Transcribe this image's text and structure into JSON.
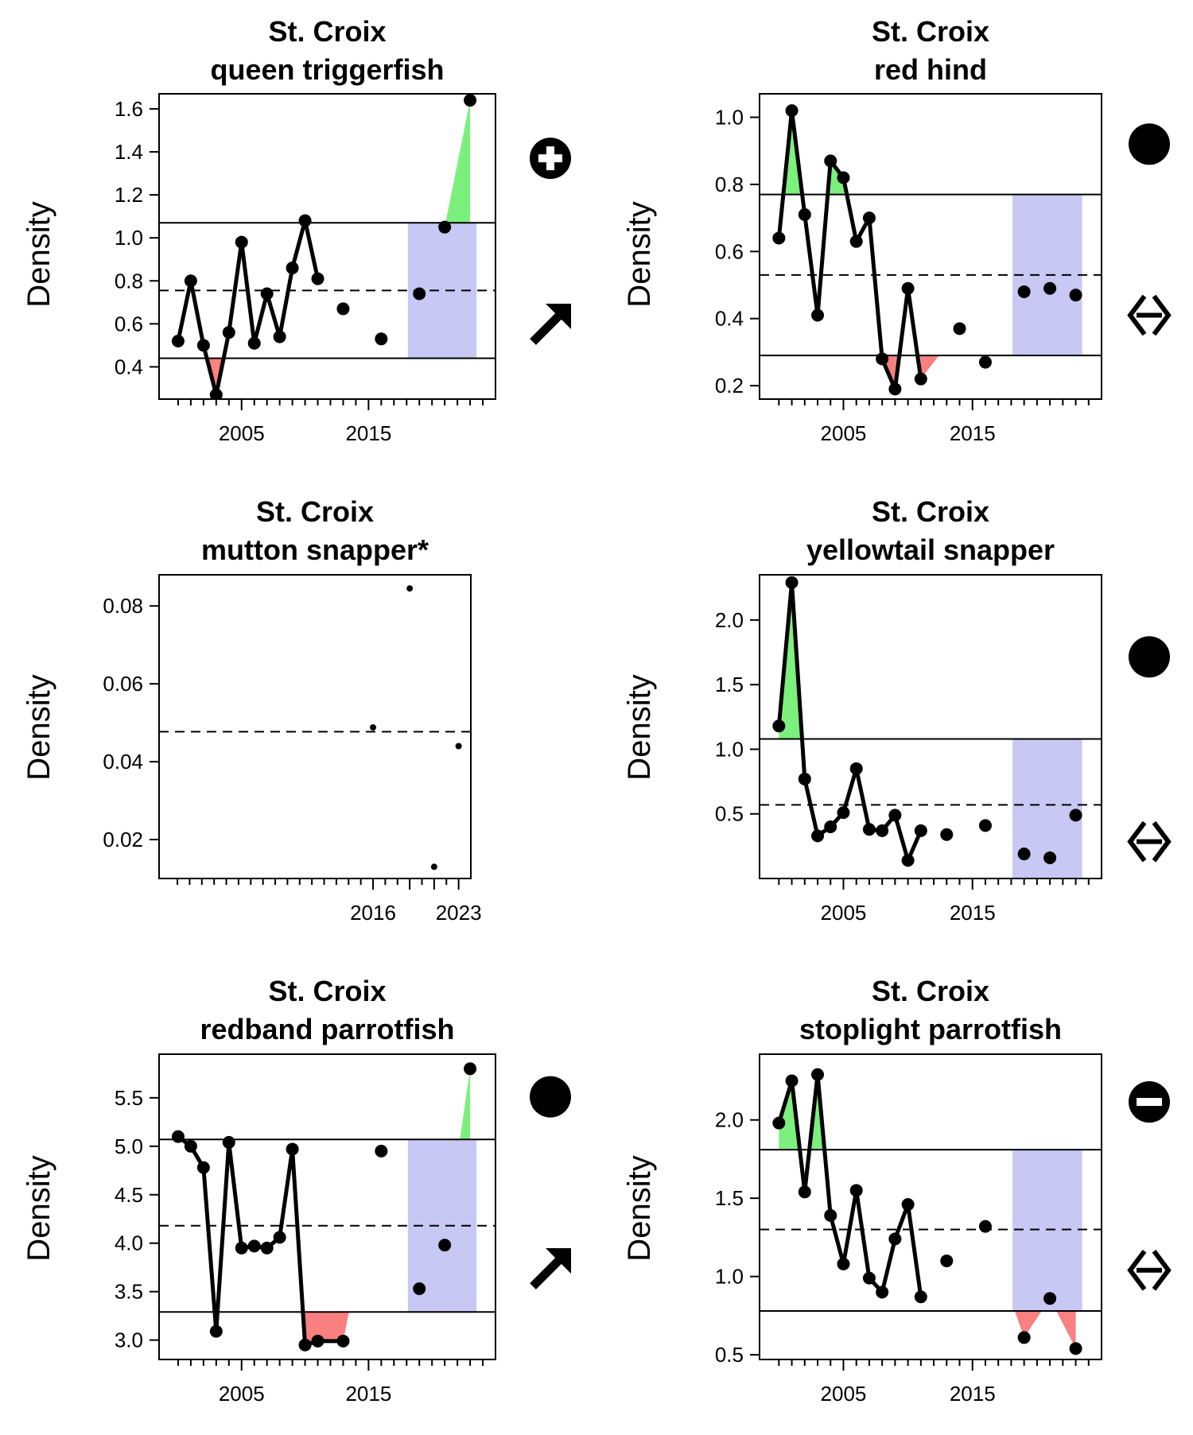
{
  "chart_data": [
    {
      "type": "line",
      "title": "St. Croix",
      "subtitle": "queen triggerfish",
      "ylabel": "Density",
      "xlim": [
        1998.5,
        2025
      ],
      "ylim": [
        0.25,
        1.67
      ],
      "yticks": [
        "0.4",
        "0.6",
        "0.8",
        "1.0",
        "1.2",
        "1.4",
        "1.6"
      ],
      "xticks": [
        "2005",
        "2015"
      ],
      "x": [
        2000,
        2001,
        2002,
        2003,
        2004,
        2005,
        2006,
        2007,
        2008,
        2009,
        2010,
        2011,
        2013,
        2016,
        2019,
        2021,
        2023
      ],
      "y": [
        0.52,
        0.8,
        0.5,
        0.27,
        0.56,
        0.98,
        0.51,
        0.74,
        0.54,
        0.86,
        1.08,
        0.81,
        0.67,
        0.53,
        0.74,
        1.05,
        1.64
      ],
      "upper": 1.07,
      "mean": 0.755,
      "lower": 0.44,
      "window": [
        2019,
        2023
      ],
      "status_symbol": "plus-circle-icon",
      "trend_symbol": "arrow-up-right-icon",
      "colors": {
        "above": "#7cf07c",
        "below": "#f88080",
        "window": "#c8c8f5"
      }
    },
    {
      "type": "line",
      "title": "St. Croix",
      "subtitle": "red hind",
      "ylabel": "Density",
      "xlim": [
        1998.5,
        2025
      ],
      "ylim": [
        0.16,
        1.07
      ],
      "yticks": [
        "0.2",
        "0.4",
        "0.6",
        "0.8",
        "1.0"
      ],
      "xticks": [
        "2005",
        "2015"
      ],
      "x": [
        2000,
        2001,
        2002,
        2003,
        2004,
        2005,
        2006,
        2007,
        2008,
        2009,
        2010,
        2011,
        2012,
        2014,
        2016,
        2019,
        2021,
        2023
      ],
      "y": [
        0.64,
        1.02,
        0.71,
        0.41,
        0.87,
        0.82,
        0.63,
        0.7,
        0.28,
        0.19,
        0.49,
        0.22,
        null,
        0.37,
        0.27,
        0.48,
        0.49,
        0.47
      ],
      "upper": 0.77,
      "mean": 0.53,
      "lower": 0.29,
      "window": [
        2019,
        2023
      ],
      "status_symbol": "filled-circle-icon",
      "trend_symbol": "arrow-left-right-icon",
      "colors": {
        "above": "#7cf07c",
        "below": "#f88080",
        "window": "#c8c8f5"
      }
    },
    {
      "type": "scatter",
      "title": "St. Croix",
      "subtitle": "mutton snapper*",
      "ylabel": "Density",
      "xlim": [
        1998.5,
        2024
      ],
      "ylim": [
        0.01,
        0.088
      ],
      "yticks": [
        "0.02",
        "0.04",
        "0.06",
        "0.08"
      ],
      "xticks": [
        "2016",
        "2023"
      ],
      "x": [
        2016,
        2019,
        2021,
        2023
      ],
      "y": [
        0.0488,
        0.0845,
        0.013,
        0.044
      ],
      "mean": 0.0477
    },
    {
      "type": "line",
      "title": "St. Croix",
      "subtitle": "yellowtail snapper",
      "ylabel": "Density",
      "xlim": [
        1998.5,
        2025
      ],
      "ylim": [
        0.0,
        2.35
      ],
      "yticks": [
        "0.5",
        "1.0",
        "1.5",
        "2.0"
      ],
      "xticks": [
        "2005",
        "2015"
      ],
      "x": [
        2000,
        2001,
        2002,
        2003,
        2004,
        2005,
        2006,
        2007,
        2008,
        2009,
        2010,
        2011,
        2013,
        2016,
        2019,
        2021,
        2023
      ],
      "y": [
        1.18,
        2.29,
        0.77,
        0.33,
        0.4,
        0.51,
        0.85,
        0.38,
        0.37,
        0.49,
        0.14,
        0.37,
        0.34,
        0.41,
        0.19,
        0.16,
        0.49
      ],
      "upper": 1.08,
      "mean": 0.57,
      "lower": 0.0,
      "window": [
        2019,
        2023
      ],
      "status_symbol": "filled-circle-icon",
      "trend_symbol": "arrow-left-right-icon",
      "colors": {
        "above": "#7cf07c",
        "below": "#f88080",
        "window": "#c8c8f5"
      }
    },
    {
      "type": "line",
      "title": "St. Croix",
      "subtitle": "redband parrotfish",
      "ylabel": "Density",
      "xlim": [
        1998.5,
        2025
      ],
      "ylim": [
        2.8,
        5.95
      ],
      "yticks": [
        "3.0",
        "3.5",
        "4.0",
        "4.5",
        "5.0",
        "5.5"
      ],
      "xticks": [
        "2005",
        "2015"
      ],
      "x": [
        2000,
        2001,
        2002,
        2003,
        2004,
        2005,
        2006,
        2007,
        2008,
        2009,
        2010,
        2011,
        2013,
        2016,
        2019,
        2021,
        2023
      ],
      "y": [
        5.1,
        5.0,
        4.78,
        3.09,
        5.04,
        3.95,
        3.97,
        3.95,
        4.06,
        4.97,
        2.95,
        2.99,
        2.99,
        4.95,
        3.53,
        3.98,
        5.8
      ],
      "upper": 5.07,
      "mean": 4.18,
      "lower": 3.29,
      "window": [
        2019,
        2023
      ],
      "status_symbol": "filled-circle-icon",
      "trend_symbol": "arrow-up-right-icon",
      "colors": {
        "above": "#7cf07c",
        "below": "#f88080",
        "window": "#c8c8f5"
      }
    },
    {
      "type": "line",
      "title": "St. Croix",
      "subtitle": "stoplight parrotfish",
      "ylabel": "Density",
      "xlim": [
        1998.5,
        2025
      ],
      "ylim": [
        0.47,
        2.42
      ],
      "yticks": [
        "0.5",
        "1.0",
        "1.5",
        "2.0"
      ],
      "xticks": [
        "2005",
        "2015"
      ],
      "x": [
        2000,
        2001,
        2002,
        2003,
        2004,
        2005,
        2006,
        2007,
        2008,
        2009,
        2010,
        2011,
        2013,
        2016,
        2019,
        2021,
        2023
      ],
      "y": [
        1.98,
        2.25,
        1.54,
        2.29,
        1.39,
        1.08,
        1.55,
        0.99,
        0.9,
        1.24,
        1.46,
        0.87,
        1.1,
        1.32,
        0.61,
        0.86,
        0.54
      ],
      "upper": 1.81,
      "mean": 1.3,
      "lower": 0.78,
      "window": [
        2019,
        2023
      ],
      "status_symbol": "minus-circle-icon",
      "trend_symbol": "arrow-left-right-icon",
      "colors": {
        "above": "#7cf07c",
        "below": "#f88080",
        "window": "#c8c8f5"
      }
    }
  ]
}
